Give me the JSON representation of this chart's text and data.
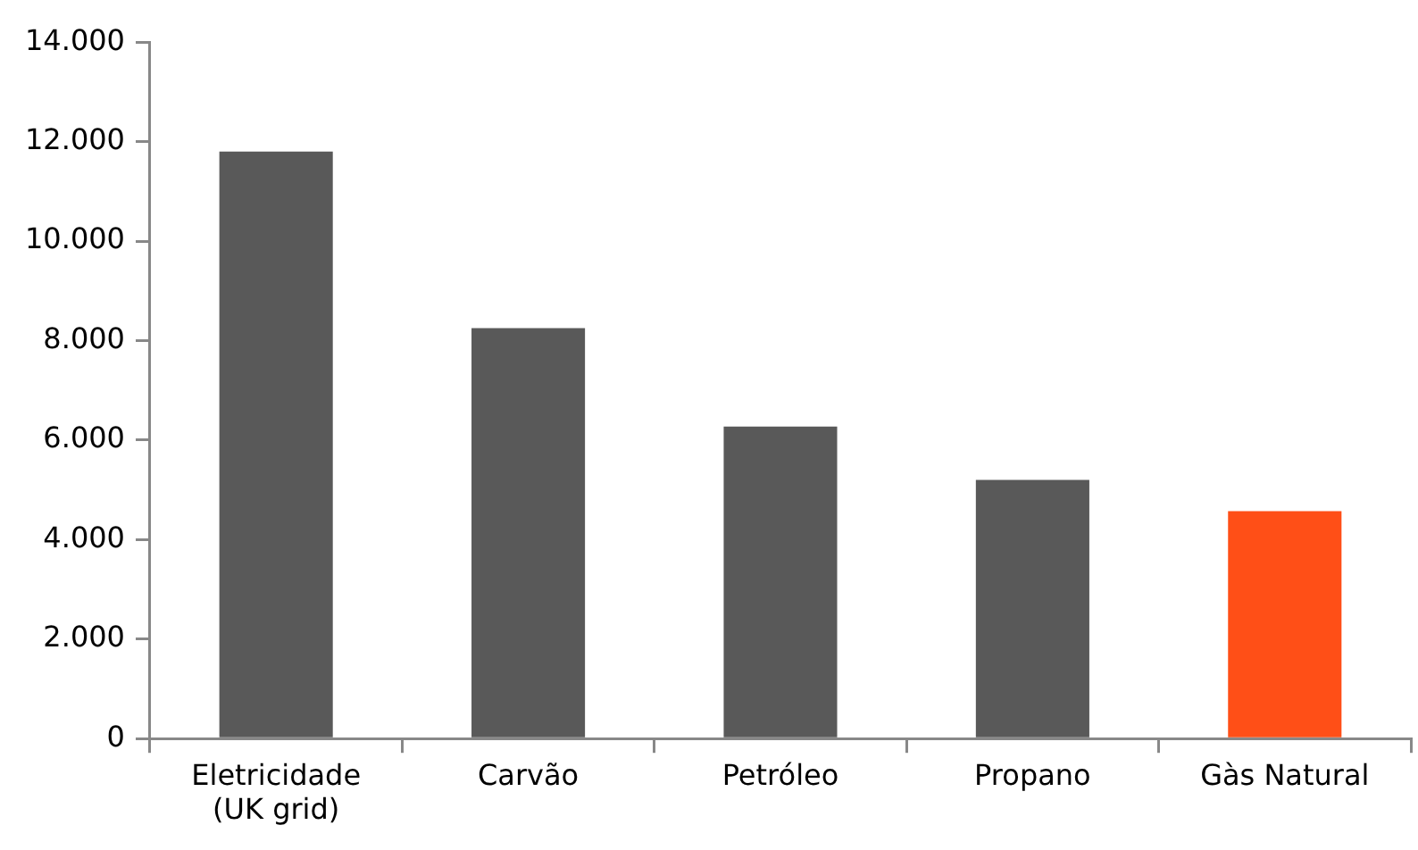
{
  "chart_data": {
    "type": "bar",
    "categories": [
      "Eletricidade (UK grid)",
      "Carvão",
      "Petróleo",
      "Propano",
      "Gàs Natural"
    ],
    "values": [
      11800,
      8250,
      6270,
      5200,
      4570
    ],
    "colors": [
      "#595959",
      "#595959",
      "#595959",
      "#595959",
      "#ff4f17"
    ],
    "ylim": [
      0,
      14000
    ],
    "yticks": [
      {
        "value": 0,
        "label": "0"
      },
      {
        "value": 2000,
        "label": "2.000"
      },
      {
        "value": 4000,
        "label": "4.000"
      },
      {
        "value": 6000,
        "label": "6.000"
      },
      {
        "value": 8000,
        "label": "8.000"
      },
      {
        "value": 10000,
        "label": "10.000"
      },
      {
        "value": 12000,
        "label": "12.000"
      },
      {
        "value": 14000,
        "label": "14.000"
      }
    ],
    "grid": false,
    "legend": false
  }
}
